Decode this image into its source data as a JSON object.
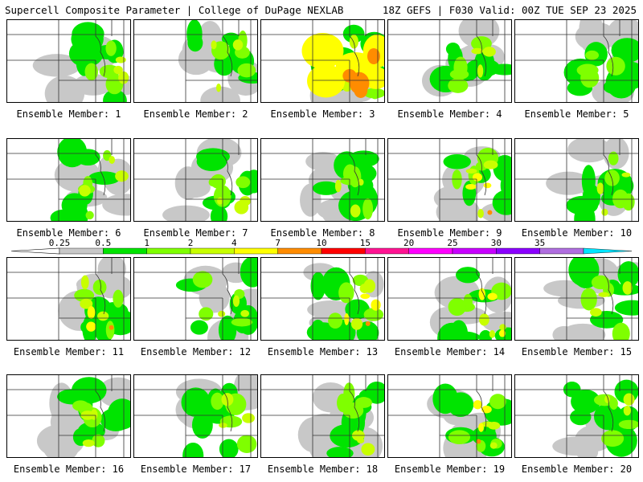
{
  "header": {
    "title_left": "Supercell Composite Parameter | College of DuPage NEXLAB",
    "title_right": "18Z GEFS | F030 Valid: 00Z TUE SEP 23 2025"
  },
  "legend": {
    "labels": [
      "0.25",
      "0.5",
      "1",
      "2",
      "4",
      "7",
      "10",
      "15",
      "20",
      "25",
      "30",
      "35"
    ],
    "colors": [
      "#c8c8c8",
      "#00e400",
      "#7fff00",
      "#c8ff00",
      "#ffff00",
      "#ff8c00",
      "#ff0000",
      "#ff1493",
      "#ff00ff",
      "#c800ff",
      "#8b00ff",
      "#b06ee0",
      "#00e5ff"
    ]
  },
  "members": [
    {
      "label": "Ensemble Member: 1",
      "intensity": 2
    },
    {
      "label": "Ensemble Member: 2",
      "intensity": 2
    },
    {
      "label": "Ensemble Member: 3",
      "intensity": 5
    },
    {
      "label": "Ensemble Member: 4",
      "intensity": 2
    },
    {
      "label": "Ensemble Member: 5",
      "intensity": 1
    },
    {
      "label": "Ensemble Member: 6",
      "intensity": 2
    },
    {
      "label": "Ensemble Member: 7",
      "intensity": 2
    },
    {
      "label": "Ensemble Member: 8",
      "intensity": 2
    },
    {
      "label": "Ensemble Member: 9",
      "intensity": 3
    },
    {
      "label": "Ensemble Member: 10",
      "intensity": 2
    },
    {
      "label": "Ensemble Member: 11",
      "intensity": 3
    },
    {
      "label": "Ensemble Member: 12",
      "intensity": 2
    },
    {
      "label": "Ensemble Member: 13",
      "intensity": 3
    },
    {
      "label": "Ensemble Member: 14",
      "intensity": 3
    },
    {
      "label": "Ensemble Member: 15",
      "intensity": 2
    },
    {
      "label": "Ensemble Member: 16",
      "intensity": 2
    },
    {
      "label": "Ensemble Member: 17",
      "intensity": 2
    },
    {
      "label": "Ensemble Member: 18",
      "intensity": 2
    },
    {
      "label": "Ensemble Member: 19",
      "intensity": 3
    },
    {
      "label": "Ensemble Member: 20",
      "intensity": 2
    }
  ]
}
